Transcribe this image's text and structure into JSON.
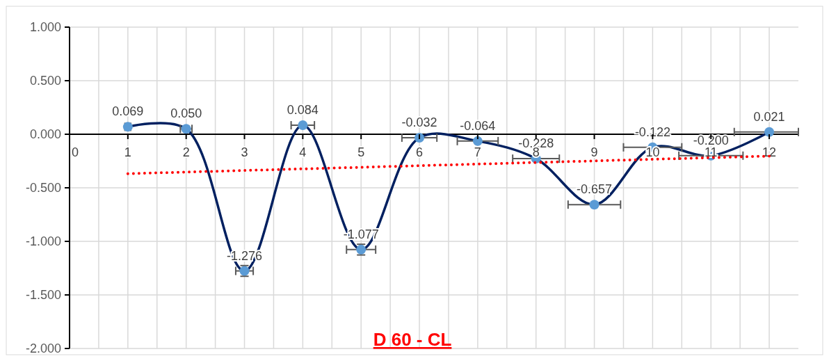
{
  "chart_data": {
    "type": "line",
    "title": "D 60 - CL",
    "x": [
      1,
      2,
      3,
      4,
      5,
      6,
      7,
      8,
      9,
      10,
      11,
      12
    ],
    "xlim": [
      0,
      12.5
    ],
    "xticks": [
      0,
      {
        "value": 0.5,
        "label": null
      },
      1,
      {
        "value": 1.5,
        "label": null
      },
      2,
      {
        "value": 2.5,
        "label": null
      },
      3,
      {
        "value": 3.5,
        "label": null
      },
      4,
      {
        "value": 4.5,
        "label": null
      },
      5,
      {
        "value": 5.5,
        "label": null
      },
      6,
      {
        "value": 6.5,
        "label": null
      },
      7,
      {
        "value": 7.5,
        "label": null
      },
      8,
      {
        "value": 8.5,
        "label": null
      },
      9,
      {
        "value": 9.5,
        "label": null
      },
      10,
      {
        "value": 10.5,
        "label": null
      },
      11,
      {
        "value": 11.5,
        "label": null
      },
      12
    ],
    "ylim": [
      -2,
      1
    ],
    "yticks": [
      {
        "value": 1,
        "label": "1.000"
      },
      {
        "value": 0.5,
        "label": "0.500"
      },
      {
        "value": 0,
        "label": "0.000"
      },
      {
        "value": -0.5,
        "label": "-0.500"
      },
      {
        "value": -1,
        "label": "-1.000"
      },
      {
        "value": -1.5,
        "label": "-1.500"
      },
      {
        "value": -2,
        "label": "-2.000"
      }
    ],
    "grid": true,
    "marker": "circle",
    "line_style": "solid",
    "series": [
      {
        "type": "line",
        "color": "#002060",
        "values": [
          0.069,
          0.05,
          -1.276,
          0.084,
          -1.077,
          -0.032,
          -0.064,
          -0.228,
          -0.657,
          -0.122,
          -0.2,
          0.021
        ],
        "value_labels": [
          "0.069",
          "0.050",
          "-1.276",
          "0.084",
          "-1.077",
          "-0.032",
          "-0.064",
          "-0.228",
          "-0.657",
          "-0.122",
          "-0.200",
          "0.021"
        ],
        "errors": [
          null,
          null,
          0.05,
          null,
          0.05,
          null,
          null,
          null,
          null,
          null,
          null,
          null
        ],
        "xerrors": [
          0.05,
          0.1,
          0.15,
          0.2,
          0.25,
          0.3,
          0.35,
          0.4,
          0.45,
          0.5,
          0.55,
          [
            11.4,
            12.5
          ]
        ]
      },
      {
        "type": "line",
        "color": "#ff0000",
        "line_style": "dotted",
        "marker": "none",
        "x": [
          1,
          12
        ],
        "values": [
          -0.368,
          -0.204
        ]
      }
    ]
  }
}
